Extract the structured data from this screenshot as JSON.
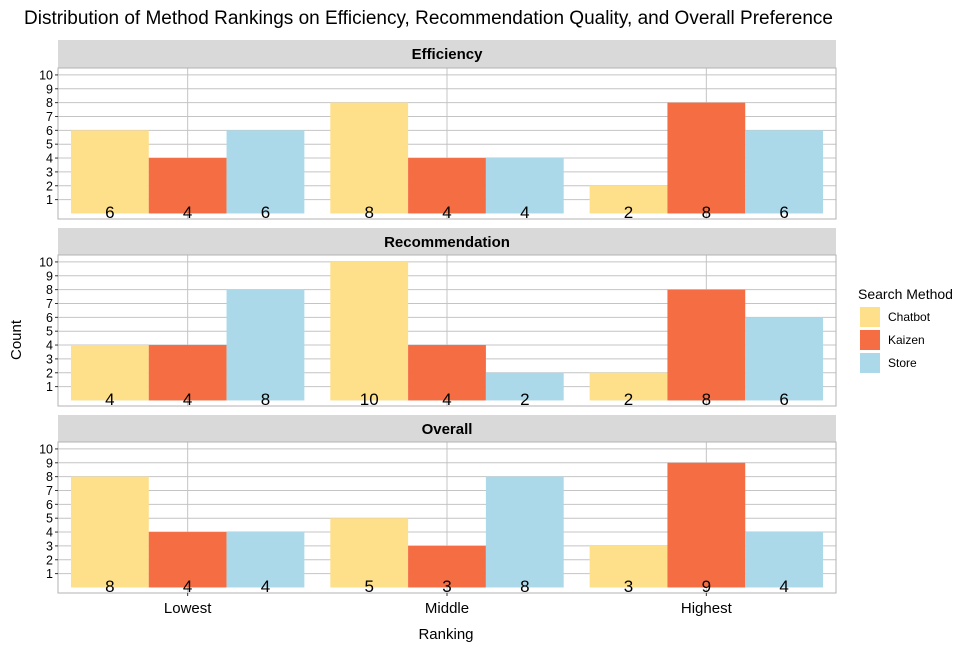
{
  "chart_data": {
    "type": "bar",
    "title": "Distribution of Method Rankings on Efficiency, Recommendation Quality, and Overall Preference",
    "xlabel": "Ranking",
    "ylabel": "Count",
    "categories": [
      "Lowest",
      "Middle",
      "Highest"
    ],
    "ylim": [
      0,
      10
    ],
    "yticks": [
      1,
      2,
      3,
      4,
      5,
      6,
      7,
      8,
      9,
      10
    ],
    "grid": true,
    "legend": {
      "title": "Search Method",
      "position": "right",
      "items": [
        {
          "name": "Chatbot",
          "color": "#fee08b"
        },
        {
          "name": "Kaizen",
          "color": "#f46d43"
        },
        {
          "name": "Store",
          "color": "#abd9e9"
        }
      ]
    },
    "panels": [
      {
        "title": "Efficiency",
        "series": [
          {
            "name": "Chatbot",
            "values": [
              6,
              8,
              2
            ]
          },
          {
            "name": "Kaizen",
            "values": [
              4,
              4,
              8
            ]
          },
          {
            "name": "Store",
            "values": [
              6,
              4,
              6
            ]
          }
        ]
      },
      {
        "title": "Recommendation",
        "series": [
          {
            "name": "Chatbot",
            "values": [
              4,
              10,
              2
            ]
          },
          {
            "name": "Kaizen",
            "values": [
              4,
              4,
              8
            ]
          },
          {
            "name": "Store",
            "values": [
              8,
              2,
              6
            ]
          }
        ]
      },
      {
        "title": "Overall",
        "series": [
          {
            "name": "Chatbot",
            "values": [
              8,
              5,
              3
            ]
          },
          {
            "name": "Kaizen",
            "values": [
              4,
              3,
              9
            ]
          },
          {
            "name": "Store",
            "values": [
              4,
              8,
              4
            ]
          }
        ]
      }
    ]
  }
}
